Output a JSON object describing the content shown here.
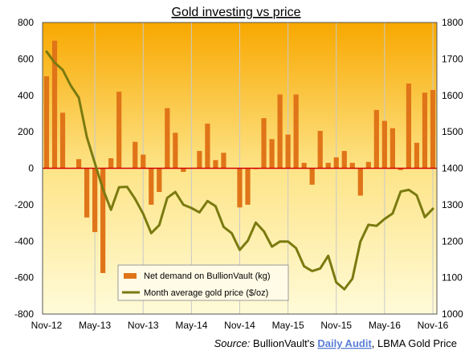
{
  "chart_data": {
    "type": "bar+line",
    "title": "Gold investing vs price",
    "x_tick_labels": [
      "Nov-12",
      "May-13",
      "Nov-13",
      "May-14",
      "Nov-14",
      "May-15",
      "Nov-15",
      "May-16",
      "Nov-16"
    ],
    "left_axis": {
      "min": -800,
      "max": 800,
      "step": 200,
      "ticks": [
        "-800",
        "-600",
        "-400",
        "-200",
        "0",
        "200",
        "400",
        "600",
        "800"
      ]
    },
    "right_axis": {
      "min": 1000,
      "max": 1800,
      "step": 100,
      "ticks": [
        "1000",
        "1100",
        "1200",
        "1300",
        "1400",
        "1500",
        "1600",
        "1700",
        "1800"
      ]
    },
    "grid": "vertical",
    "legend_position": "bottom-left",
    "series": [
      {
        "name": "Net demand on BullionVault (kg)",
        "type": "bar",
        "axis": "left",
        "color": "#e07418",
        "values": [
          505,
          700,
          305,
          0,
          50,
          -270,
          -350,
          -575,
          55,
          420,
          0,
          145,
          75,
          -200,
          -130,
          330,
          195,
          -20,
          0,
          95,
          245,
          45,
          85,
          0,
          -215,
          -200,
          -5,
          275,
          160,
          405,
          185,
          405,
          30,
          -90,
          205,
          30,
          60,
          95,
          30,
          -150,
          35,
          320,
          260,
          220,
          -10,
          465,
          140,
          415,
          430
        ]
      },
      {
        "name": "Month average gold price ($/oz)",
        "type": "line",
        "axis": "right",
        "color": "#7a7a10",
        "values": [
          1720,
          1690,
          1670,
          1627,
          1594,
          1486,
          1414,
          1343,
          1286,
          1348,
          1349,
          1316,
          1275,
          1222,
          1244,
          1319,
          1335,
          1300,
          1291,
          1279,
          1310,
          1296,
          1239,
          1222,
          1176,
          1201,
          1251,
          1227,
          1185,
          1199,
          1199,
          1181,
          1131,
          1118,
          1125,
          1160,
          1087,
          1068,
          1097,
          1199,
          1245,
          1242,
          1261,
          1276,
          1336,
          1341,
          1326,
          1266,
          1289
        ]
      }
    ]
  },
  "source": {
    "label": "Source:",
    "text_before": "BullionVault's",
    "link": "Daily Audit",
    "text_after": ", LBMA Gold Price"
  }
}
